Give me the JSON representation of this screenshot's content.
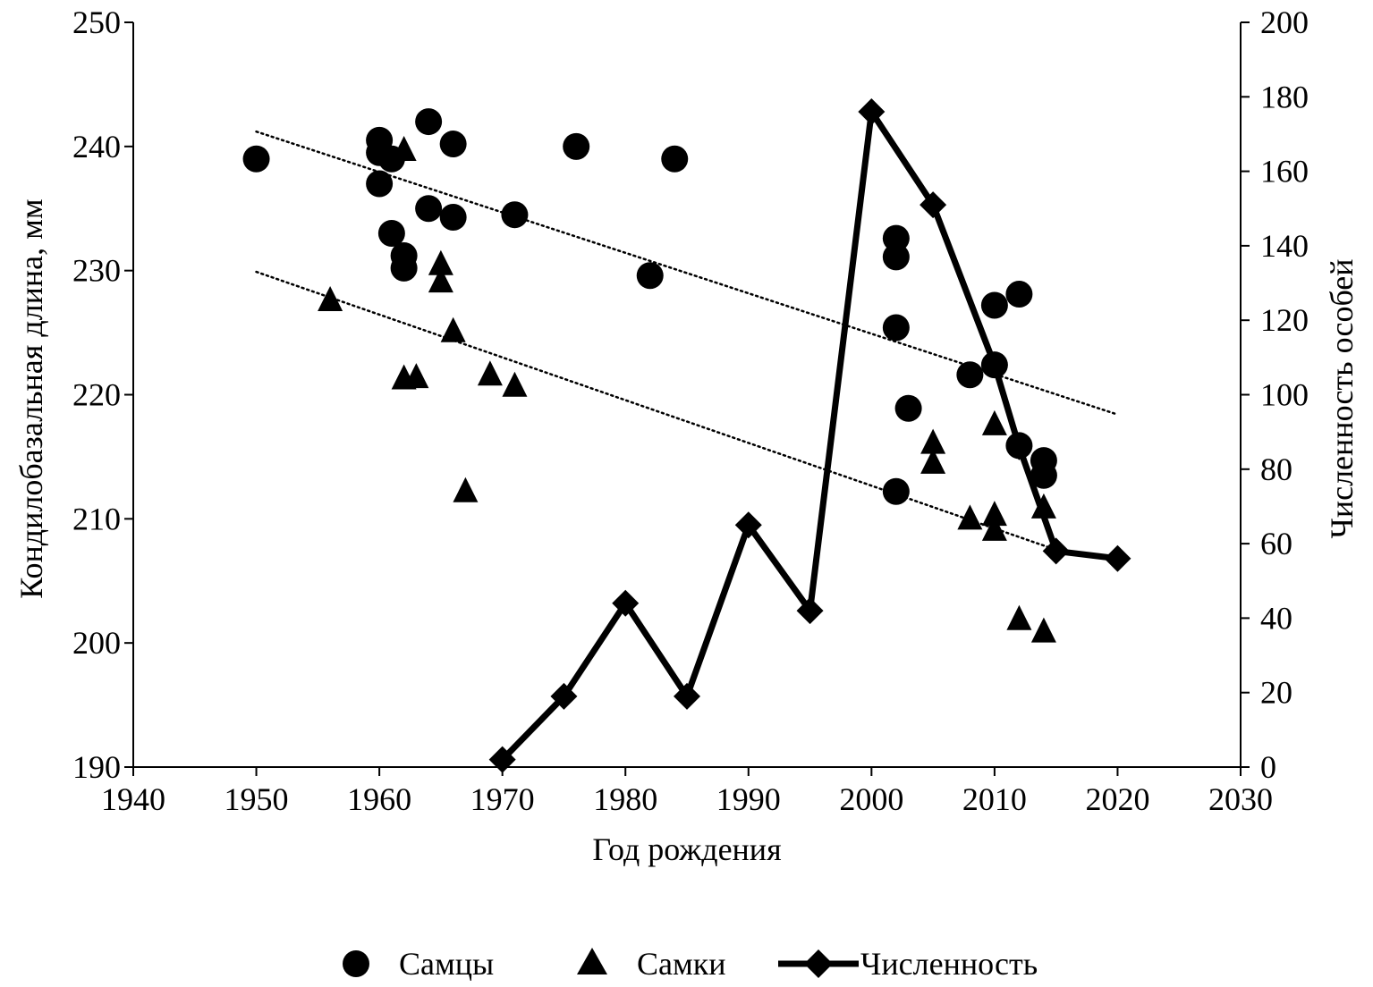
{
  "chart_data": {
    "type": "scatter",
    "xlabel": "Год рождения",
    "ylabel": "Кондилобазальная длина, мм",
    "y2label": "Численность особей",
    "xlim": [
      1940,
      2030
    ],
    "ylim": [
      190,
      250
    ],
    "y2lim": [
      0,
      200
    ],
    "x_ticks": [
      1940,
      1950,
      1960,
      1970,
      1980,
      1990,
      2000,
      2010,
      2020,
      2030
    ],
    "y_ticks": [
      190,
      200,
      210,
      220,
      230,
      240,
      250
    ],
    "y2_ticks": [
      0,
      20,
      40,
      60,
      80,
      100,
      120,
      140,
      160,
      180,
      200
    ],
    "grid": false,
    "legend_position": "bottom",
    "series": [
      {
        "name": "Самцы",
        "marker": "circle",
        "axis": "left",
        "points": [
          [
            1950,
            239.0
          ],
          [
            1960,
            240.5
          ],
          [
            1960,
            239.5
          ],
          [
            1960,
            237.0
          ],
          [
            1961,
            239.0
          ],
          [
            1961,
            233.0
          ],
          [
            1962,
            231.2
          ],
          [
            1962,
            230.2
          ],
          [
            1964,
            242.0
          ],
          [
            1964,
            235.0
          ],
          [
            1966,
            240.2
          ],
          [
            1966,
            234.3
          ],
          [
            1971,
            234.5
          ],
          [
            1976,
            240.0
          ],
          [
            1982,
            229.6
          ],
          [
            1984,
            239.0
          ],
          [
            2002,
            232.6
          ],
          [
            2002,
            231.1
          ],
          [
            2002,
            225.4
          ],
          [
            2002,
            212.2
          ],
          [
            2003,
            218.9
          ],
          [
            2008,
            221.6
          ],
          [
            2010,
            227.2
          ],
          [
            2010,
            222.4
          ],
          [
            2012,
            228.1
          ],
          [
            2012,
            215.9
          ],
          [
            2014,
            214.7
          ],
          [
            2014,
            213.5
          ]
        ]
      },
      {
        "name": "Самки",
        "marker": "triangle",
        "axis": "left",
        "points": [
          [
            1956,
            227.6
          ],
          [
            1962,
            239.7
          ],
          [
            1962,
            221.3
          ],
          [
            1963,
            221.4
          ],
          [
            1965,
            230.5
          ],
          [
            1965,
            229.1
          ],
          [
            1966,
            225.1
          ],
          [
            1967,
            212.2
          ],
          [
            1969,
            221.6
          ],
          [
            1971,
            220.7
          ],
          [
            2005,
            216.1
          ],
          [
            2005,
            214.5
          ],
          [
            2008,
            210.0
          ],
          [
            2010,
            217.6
          ],
          [
            2010,
            210.3
          ],
          [
            2010,
            209.1
          ],
          [
            2012,
            201.9
          ],
          [
            2014,
            210.9
          ],
          [
            2014,
            200.9
          ]
        ]
      },
      {
        "name": "Численность",
        "marker": "diamond",
        "axis": "right",
        "line": true,
        "points": [
          [
            1970,
            2
          ],
          [
            1975,
            19
          ],
          [
            1980,
            44
          ],
          [
            1985,
            19
          ],
          [
            1990,
            65
          ],
          [
            1995,
            42
          ],
          [
            2000,
            176
          ],
          [
            2005,
            151
          ],
          [
            2010,
            108
          ],
          [
            2012,
            86
          ],
          [
            2015,
            58
          ],
          [
            2020,
            56
          ]
        ]
      }
    ],
    "trendlines": [
      {
        "style": "dotted",
        "axis": "left",
        "x": [
          1950,
          2020
        ],
        "y": [
          241.2,
          218.4
        ]
      },
      {
        "style": "dotted",
        "axis": "left",
        "x": [
          1950,
          2015
        ],
        "y": [
          229.9,
          207.5
        ]
      }
    ]
  },
  "colors": {
    "ink": "#000000",
    "background": "#ffffff"
  }
}
